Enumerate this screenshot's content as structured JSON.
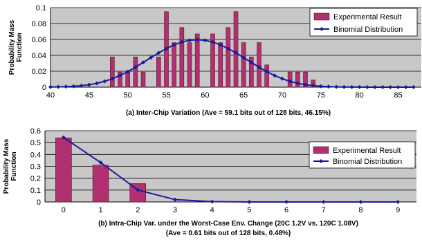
{
  "colors": {
    "plot_bg": "#c8c8c8",
    "bar_fill": "#b03070",
    "bar_stroke": "#5a1535",
    "line": "#1a1a9c",
    "grid": "#000000"
  },
  "chart_data": [
    {
      "type": "bar",
      "name": "inter-chip",
      "ylabel": "Probability Mass Function",
      "caption": "(a) Inter-Chip Variation (Ave = 59.1 bits out of 128 bits, 46.15%)",
      "xlim": [
        40,
        88
      ],
      "ylim": [
        0,
        0.1
      ],
      "xticks": [
        40,
        45,
        50,
        55,
        60,
        65,
        70,
        75,
        80,
        85
      ],
      "yticks": [
        0,
        0.02,
        0.04,
        0.06,
        0.08,
        0.1
      ],
      "ytick_labels": [
        "0",
        "0.02",
        "0.04",
        "0.06",
        "0.08",
        "0.1"
      ],
      "legend_position": "top-right",
      "series": [
        {
          "name": "Experimental Result",
          "kind": "bar",
          "x": [
            48,
            49,
            50,
            51,
            52,
            54,
            55,
            56,
            57,
            58,
            59,
            61,
            62,
            63,
            64,
            65,
            66,
            67,
            68,
            71,
            72,
            73,
            74
          ],
          "values": [
            0.038,
            0.019,
            0.019,
            0.038,
            0.019,
            0.038,
            0.095,
            0.056,
            0.075,
            0.056,
            0.067,
            0.067,
            0.056,
            0.075,
            0.095,
            0.056,
            0.038,
            0.056,
            0.028,
            0.019,
            0.019,
            0.019,
            0.009
          ]
        },
        {
          "name": "Binomial Distribution",
          "kind": "line",
          "x": [
            40,
            41,
            42,
            43,
            44,
            45,
            46,
            47,
            48,
            49,
            50,
            51,
            52,
            53,
            54,
            55,
            56,
            57,
            58,
            59,
            60,
            61,
            62,
            63,
            64,
            65,
            66,
            67,
            68,
            69,
            70,
            71,
            72,
            73,
            74,
            75,
            76,
            77,
            78,
            79,
            80,
            81,
            82,
            83,
            84,
            85,
            86,
            87
          ],
          "values": [
            0.0002,
            0.0003,
            0.0006,
            0.0011,
            0.0019,
            0.003,
            0.0048,
            0.0073,
            0.0106,
            0.0147,
            0.0196,
            0.0251,
            0.0311,
            0.0372,
            0.0431,
            0.0485,
            0.0532,
            0.0567,
            0.0589,
            0.0597,
            0.0589,
            0.0567,
            0.0532,
            0.0485,
            0.0431,
            0.0372,
            0.0311,
            0.0251,
            0.0196,
            0.0147,
            0.0106,
            0.0073,
            0.0048,
            0.003,
            0.0019,
            0.0011,
            0.0006,
            0.0003,
            0.0002,
            0.0001,
            0.0001,
            0,
            0,
            0,
            0,
            0,
            0,
            0
          ]
        }
      ]
    },
    {
      "type": "bar",
      "name": "intra-chip",
      "ylabel": "Probability Mass Function",
      "caption": "(b) Intra-Chip Var. under the Worst-Case Env. Change (20C 1.2V vs. 120C 1.08V)",
      "caption2": "(Ave = 0.61 bits out of 128 bits, 0.48%)",
      "xlim": [
        -0.5,
        9.5
      ],
      "ylim": [
        0,
        0.6
      ],
      "xticks": [
        0,
        1,
        2,
        3,
        4,
        5,
        6,
        7,
        8,
        9
      ],
      "yticks": [
        0,
        0.1,
        0.2,
        0.3,
        0.4,
        0.5,
        0.6
      ],
      "ytick_labels": [
        "0",
        "0.1",
        "0.2",
        "0.3",
        "0.4",
        "0.5",
        "0.6"
      ],
      "legend_position": "top-right",
      "series": [
        {
          "name": "Experimental Result",
          "kind": "bar",
          "x": [
            0,
            1,
            2
          ],
          "values": [
            0.54,
            0.31,
            0.155
          ]
        },
        {
          "name": "Binomial Distribution",
          "kind": "line",
          "x": [
            0,
            1,
            2,
            3,
            4,
            5,
            6,
            7,
            8,
            9
          ],
          "values": [
            0.543,
            0.332,
            0.101,
            0.02,
            0.003,
            0.0003,
            0,
            0,
            0,
            0
          ]
        }
      ]
    }
  ]
}
